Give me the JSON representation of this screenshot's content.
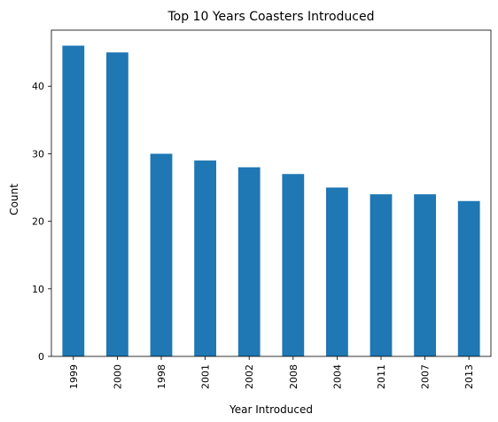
{
  "chart_data": {
    "type": "bar",
    "title": "Top 10 Years Coasters Introduced",
    "xlabel": "Year Introduced",
    "ylabel": "Count",
    "categories": [
      "1999",
      "2000",
      "1998",
      "2001",
      "2002",
      "2008",
      "2004",
      "2011",
      "2007",
      "2013"
    ],
    "values": [
      46,
      45,
      30,
      29,
      28,
      27,
      25,
      24,
      24,
      23
    ],
    "ylim": [
      0,
      48.3
    ],
    "yticks": [
      0,
      10,
      20,
      30,
      40
    ],
    "grid": false,
    "legend": "none",
    "bar_color": "#1f77b4"
  }
}
